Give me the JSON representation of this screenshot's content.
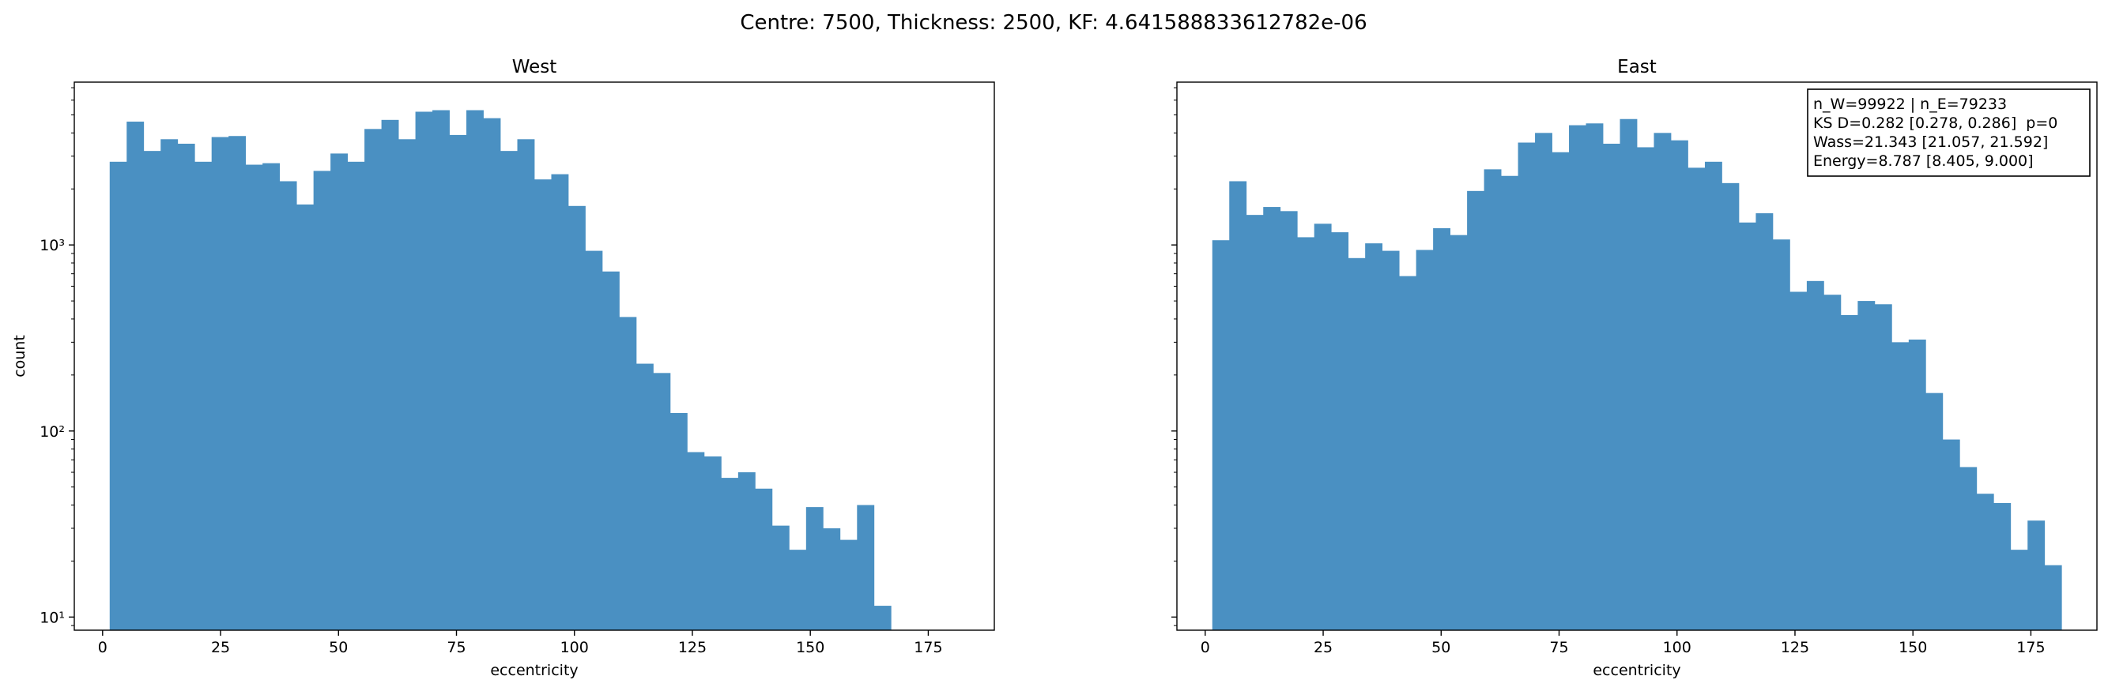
{
  "suptitle": "Centre: 7500, Thickness: 2500, KF: 4.641588833612782e-06",
  "colors": {
    "bar": "#4a90c2",
    "axis": "#000000",
    "background": "#ffffff"
  },
  "chart_data": [
    {
      "type": "bar",
      "title": "West",
      "xlabel": "eccentricity",
      "ylabel": "count",
      "yscale": "log",
      "xlim": [
        -6,
        189
      ],
      "ylim": [
        8.5,
        7500
      ],
      "xticks": [
        0,
        25,
        50,
        75,
        100,
        125,
        150,
        175
      ],
      "yticks": [
        {
          "value": 10,
          "label": "10¹"
        },
        {
          "value": 100,
          "label": "10²"
        },
        {
          "value": 1000,
          "label": "10³"
        }
      ],
      "bin_start": 1.5,
      "bin_width": 3.6,
      "values": [
        2800,
        4600,
        3200,
        3700,
        3500,
        2800,
        3800,
        3850,
        2700,
        2750,
        2200,
        1650,
        2500,
        3100,
        2800,
        4200,
        4700,
        3700,
        5200,
        5300,
        3900,
        5300,
        4800,
        3200,
        3700,
        2250,
        2400,
        1620,
        930,
        720,
        410,
        230,
        205,
        125,
        77,
        73,
        56,
        60,
        49,
        31,
        23,
        39,
        30,
        26,
        40,
        11.5
      ]
    },
    {
      "type": "bar",
      "title": "East",
      "xlabel": "eccentricity",
      "ylabel": "",
      "yscale": "log",
      "xlim": [
        -6,
        189
      ],
      "ylim": [
        8.5,
        7500
      ],
      "xticks": [
        0,
        25,
        50,
        75,
        100,
        125,
        150,
        175
      ],
      "yticks": [
        {
          "value": 10,
          "label": ""
        },
        {
          "value": 100,
          "label": ""
        },
        {
          "value": 1000,
          "label": ""
        }
      ],
      "bin_start": 1.5,
      "bin_width": 3.6,
      "values": [
        1060,
        2200,
        1450,
        1600,
        1520,
        1100,
        1300,
        1170,
        850,
        1020,
        930,
        680,
        940,
        1230,
        1130,
        1950,
        2550,
        2350,
        3550,
        4000,
        3150,
        4400,
        4500,
        3500,
        4750,
        3350,
        4000,
        3650,
        2600,
        2800,
        2150,
        1320,
        1480,
        1070,
        560,
        640,
        540,
        420,
        500,
        480,
        300,
        310,
        160,
        90,
        64,
        46,
        41,
        23,
        33,
        19
      ],
      "annotation": [
        "n_W=99922 | n_E=79233",
        "KS D=0.282 [0.278, 0.286]  p=0",
        "Wass=21.343 [21.057, 21.592]",
        "Energy=8.787 [8.405, 9.000]"
      ]
    }
  ]
}
